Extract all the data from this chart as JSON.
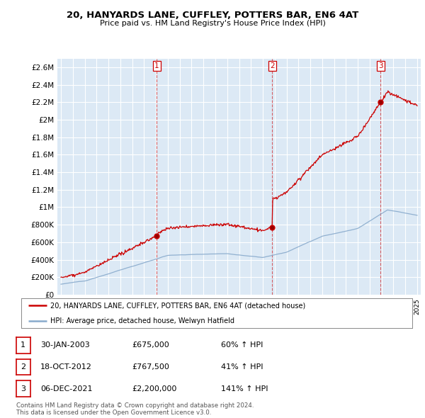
{
  "title_line1": "20, HANYARDS LANE, CUFFLEY, POTTERS BAR, EN6 4AT",
  "title_line2": "Price paid vs. HM Land Registry's House Price Index (HPI)",
  "legend_label_red": "20, HANYARDS LANE, CUFFLEY, POTTERS BAR, EN6 4AT (detached house)",
  "legend_label_blue": "HPI: Average price, detached house, Welwyn Hatfield",
  "sale_points": [
    {
      "num": 1,
      "date": "30-JAN-2003",
      "price": 675000,
      "year": 2003.08,
      "pct": "60%",
      "dir": "↑"
    },
    {
      "num": 2,
      "date": "18-OCT-2012",
      "price": 767500,
      "year": 2012.8,
      "pct": "41%",
      "dir": "↑"
    },
    {
      "num": 3,
      "date": "06-DEC-2021",
      "price": 2200000,
      "year": 2021.92,
      "pct": "141%",
      "dir": "↑"
    }
  ],
  "footnote1": "Contains HM Land Registry data © Crown copyright and database right 2024.",
  "footnote2": "This data is licensed under the Open Government Licence v3.0.",
  "ylim": [
    0,
    2700000
  ],
  "yticks": [
    0,
    200000,
    400000,
    600000,
    800000,
    1000000,
    1200000,
    1400000,
    1600000,
    1800000,
    2000000,
    2200000,
    2400000,
    2600000
  ],
  "ytick_labels": [
    "£0",
    "£200K",
    "£400K",
    "£600K",
    "£800K",
    "£1M",
    "£1.2M",
    "£1.4M",
    "£1.6M",
    "£1.8M",
    "£2M",
    "£2.2M",
    "£2.4M",
    "£2.6M"
  ],
  "xlim_start": 1994.7,
  "xlim_end": 2025.3,
  "background_color": "#dce9f5",
  "red_color": "#cc0000",
  "blue_color": "#88aacc",
  "grid_color": "#ffffff"
}
